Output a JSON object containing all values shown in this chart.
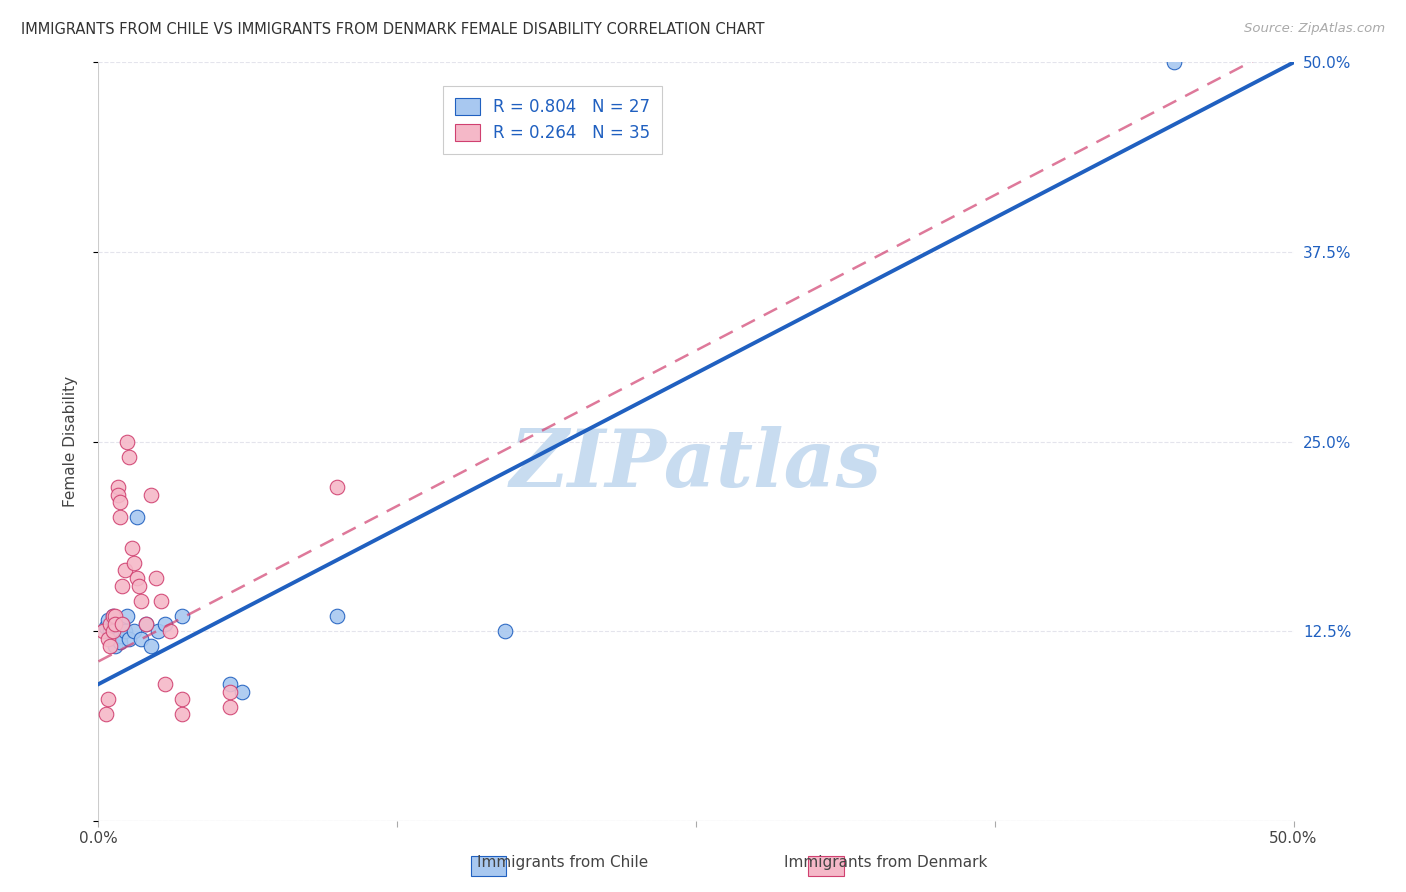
{
  "title": "IMMIGRANTS FROM CHILE VS IMMIGRANTS FROM DENMARK FEMALE DISABILITY CORRELATION CHART",
  "source": "Source: ZipAtlas.com",
  "ylabel": "Female Disability",
  "xlim": [
    0.0,
    0.5
  ],
  "ylim": [
    0.0,
    0.5
  ],
  "xticks": [
    0.0,
    0.125,
    0.25,
    0.375,
    0.5
  ],
  "yticks": [
    0.0,
    0.125,
    0.25,
    0.375,
    0.5
  ],
  "chile_color": "#a8c8f0",
  "denmark_color": "#f5b8c8",
  "chile_line_color": "#2060c0",
  "denmark_line_color": "#d04070",
  "R_chile": 0.804,
  "N_chile": 27,
  "R_denmark": 0.264,
  "N_denmark": 35,
  "watermark": "ZIPatlas",
  "watermark_color": "#c8dcf0",
  "background_color": "#ffffff",
  "grid_color": "#dedee8",
  "chile_line_slope": 0.82,
  "chile_line_intercept": 0.09,
  "denmark_line_slope": 0.82,
  "denmark_line_intercept": 0.105,
  "chile_scatter_x": [
    0.003,
    0.004,
    0.005,
    0.006,
    0.006,
    0.007,
    0.007,
    0.008,
    0.009,
    0.009,
    0.01,
    0.011,
    0.012,
    0.013,
    0.015,
    0.016,
    0.018,
    0.02,
    0.022,
    0.025,
    0.028,
    0.035,
    0.055,
    0.06,
    0.1,
    0.17,
    0.45
  ],
  "chile_scatter_y": [
    0.128,
    0.132,
    0.125,
    0.135,
    0.13,
    0.12,
    0.115,
    0.128,
    0.122,
    0.118,
    0.13,
    0.125,
    0.135,
    0.12,
    0.125,
    0.2,
    0.12,
    0.13,
    0.115,
    0.125,
    0.13,
    0.135,
    0.09,
    0.085,
    0.135,
    0.125,
    0.5
  ],
  "denmark_scatter_x": [
    0.002,
    0.003,
    0.004,
    0.004,
    0.005,
    0.005,
    0.006,
    0.006,
    0.007,
    0.007,
    0.008,
    0.008,
    0.009,
    0.009,
    0.01,
    0.01,
    0.011,
    0.012,
    0.013,
    0.014,
    0.015,
    0.016,
    0.017,
    0.018,
    0.02,
    0.022,
    0.024,
    0.026,
    0.028,
    0.03,
    0.035,
    0.055,
    0.1,
    0.055,
    0.035
  ],
  "denmark_scatter_y": [
    0.125,
    0.07,
    0.12,
    0.08,
    0.13,
    0.115,
    0.135,
    0.125,
    0.135,
    0.13,
    0.22,
    0.215,
    0.21,
    0.2,
    0.155,
    0.13,
    0.165,
    0.25,
    0.24,
    0.18,
    0.17,
    0.16,
    0.155,
    0.145,
    0.13,
    0.215,
    0.16,
    0.145,
    0.09,
    0.125,
    0.07,
    0.075,
    0.22,
    0.085,
    0.08
  ]
}
